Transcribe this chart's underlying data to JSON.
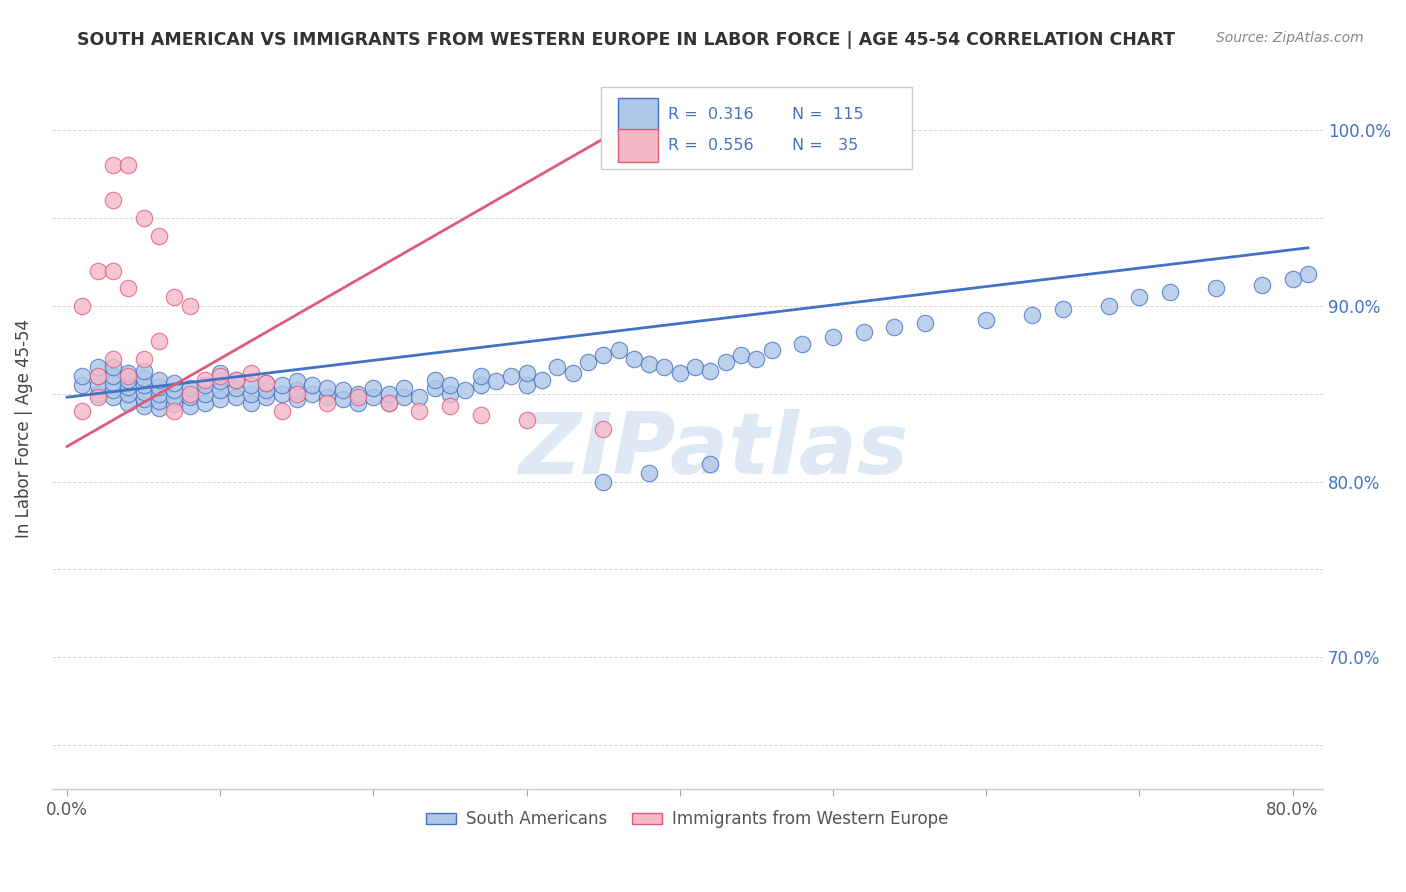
{
  "title": "SOUTH AMERICAN VS IMMIGRANTS FROM WESTERN EUROPE IN LABOR FORCE | AGE 45-54 CORRELATION CHART",
  "source": "Source: ZipAtlas.com",
  "ylabel": "In Labor Force | Age 45-54",
  "xlim": [
    -0.01,
    0.82
  ],
  "ylim": [
    0.625,
    1.035
  ],
  "blue_R": 0.316,
  "blue_N": 115,
  "pink_R": 0.556,
  "pink_N": 35,
  "blue_color": "#aec6e8",
  "pink_color": "#f5b8c8",
  "blue_line_color": "#4472c4",
  "pink_line_color": "#e05a7a",
  "legend_blue_label": "South Americans",
  "legend_pink_label": "Immigrants from Western Europe",
  "blue_x": [
    0.01,
    0.01,
    0.02,
    0.02,
    0.02,
    0.02,
    0.03,
    0.03,
    0.03,
    0.03,
    0.03,
    0.04,
    0.04,
    0.04,
    0.04,
    0.04,
    0.05,
    0.05,
    0.05,
    0.05,
    0.05,
    0.05,
    0.06,
    0.06,
    0.06,
    0.06,
    0.06,
    0.07,
    0.07,
    0.07,
    0.07,
    0.08,
    0.08,
    0.08,
    0.09,
    0.09,
    0.09,
    0.1,
    0.1,
    0.1,
    0.1,
    0.11,
    0.11,
    0.11,
    0.12,
    0.12,
    0.12,
    0.13,
    0.13,
    0.13,
    0.14,
    0.14,
    0.15,
    0.15,
    0.15,
    0.16,
    0.16,
    0.17,
    0.17,
    0.18,
    0.18,
    0.19,
    0.19,
    0.2,
    0.2,
    0.21,
    0.21,
    0.22,
    0.22,
    0.23,
    0.24,
    0.24,
    0.25,
    0.25,
    0.26,
    0.27,
    0.27,
    0.28,
    0.29,
    0.3,
    0.3,
    0.31,
    0.32,
    0.33,
    0.34,
    0.35,
    0.36,
    0.37,
    0.38,
    0.39,
    0.4,
    0.41,
    0.42,
    0.43,
    0.44,
    0.45,
    0.46,
    0.48,
    0.5,
    0.52,
    0.54,
    0.56,
    0.6,
    0.63,
    0.65,
    0.68,
    0.7,
    0.72,
    0.75,
    0.78,
    0.8,
    0.81,
    0.35,
    0.38,
    0.42
  ],
  "blue_y": [
    0.855,
    0.86,
    0.85,
    0.855,
    0.86,
    0.865,
    0.848,
    0.852,
    0.856,
    0.86,
    0.865,
    0.845,
    0.85,
    0.854,
    0.858,
    0.862,
    0.843,
    0.847,
    0.851,
    0.855,
    0.859,
    0.863,
    0.842,
    0.846,
    0.85,
    0.854,
    0.858,
    0.844,
    0.848,
    0.852,
    0.856,
    0.843,
    0.848,
    0.853,
    0.845,
    0.85,
    0.855,
    0.847,
    0.852,
    0.857,
    0.862,
    0.848,
    0.853,
    0.858,
    0.845,
    0.85,
    0.855,
    0.848,
    0.852,
    0.856,
    0.85,
    0.855,
    0.847,
    0.852,
    0.857,
    0.85,
    0.855,
    0.848,
    0.853,
    0.847,
    0.852,
    0.845,
    0.85,
    0.848,
    0.853,
    0.845,
    0.85,
    0.848,
    0.853,
    0.848,
    0.853,
    0.858,
    0.85,
    0.855,
    0.852,
    0.855,
    0.86,
    0.857,
    0.86,
    0.855,
    0.862,
    0.858,
    0.865,
    0.862,
    0.868,
    0.872,
    0.875,
    0.87,
    0.867,
    0.865,
    0.862,
    0.865,
    0.863,
    0.868,
    0.872,
    0.87,
    0.875,
    0.878,
    0.882,
    0.885,
    0.888,
    0.89,
    0.892,
    0.895,
    0.898,
    0.9,
    0.905,
    0.908,
    0.91,
    0.912,
    0.915,
    0.918,
    0.8,
    0.805,
    0.81
  ],
  "pink_x": [
    0.01,
    0.01,
    0.02,
    0.02,
    0.02,
    0.03,
    0.03,
    0.03,
    0.03,
    0.04,
    0.04,
    0.04,
    0.05,
    0.05,
    0.06,
    0.06,
    0.07,
    0.07,
    0.08,
    0.08,
    0.09,
    0.1,
    0.11,
    0.12,
    0.13,
    0.14,
    0.15,
    0.17,
    0.19,
    0.21,
    0.23,
    0.25,
    0.27,
    0.3,
    0.35
  ],
  "pink_y": [
    0.84,
    0.9,
    0.848,
    0.86,
    0.92,
    0.87,
    0.92,
    0.96,
    0.98,
    0.86,
    0.91,
    0.98,
    0.87,
    0.95,
    0.88,
    0.94,
    0.84,
    0.905,
    0.85,
    0.9,
    0.858,
    0.86,
    0.858,
    0.862,
    0.856,
    0.84,
    0.85,
    0.845,
    0.848,
    0.845,
    0.84,
    0.843,
    0.838,
    0.835,
    0.83
  ],
  "watermark_text": "ZIPatlas",
  "background_color": "#ffffff",
  "grid_color": "#cccccc",
  "blue_trend_x0": 0.0,
  "blue_trend_x1": 0.81,
  "blue_trend_y0": 0.848,
  "blue_trend_y1": 0.933,
  "pink_trend_x0": 0.0,
  "pink_trend_x1": 0.38,
  "pink_trend_y0": 0.82,
  "pink_trend_y1": 1.01
}
